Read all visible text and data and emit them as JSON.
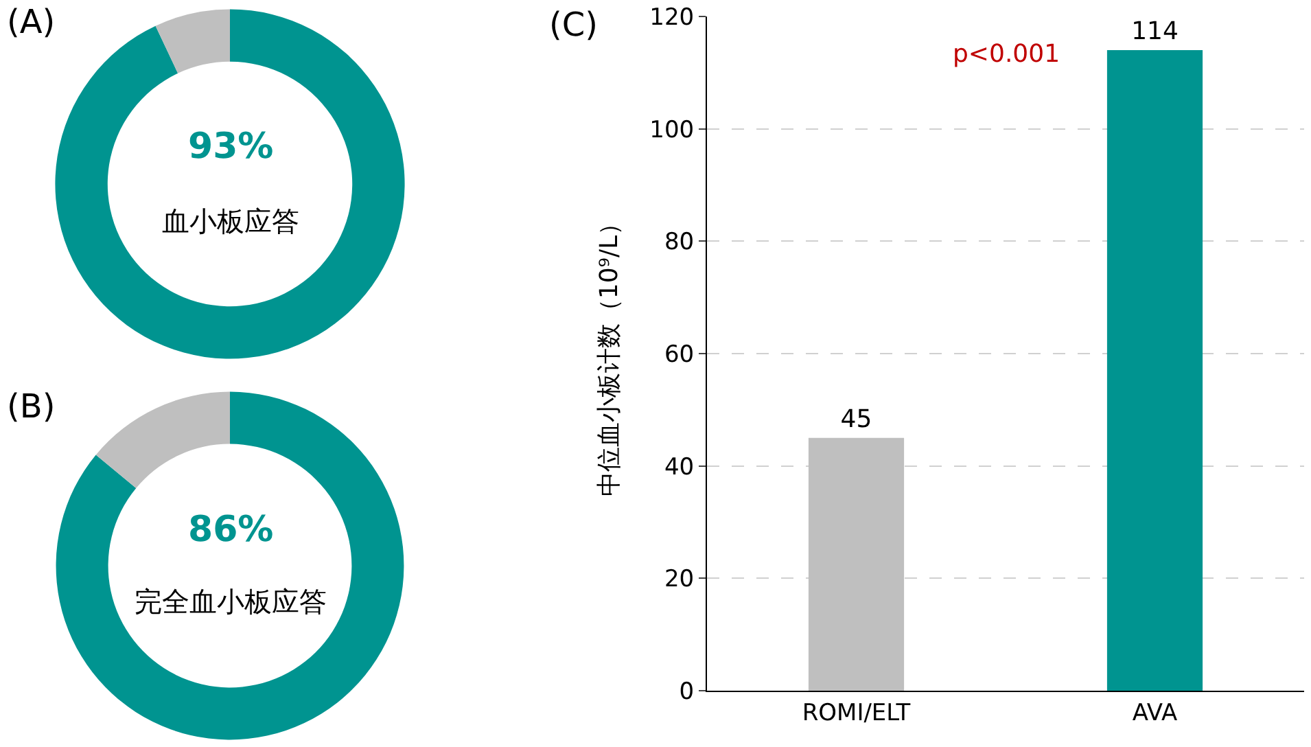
{
  "chart_data": [
    {
      "type": "donut",
      "title": "(A)",
      "categories": [
        "血小板应答",
        null
      ],
      "values": [
        93,
        7
      ],
      "colors": [
        "#009490",
        "#bfbfbf"
      ],
      "value_labels": [
        "93%",
        null
      ]
    },
    {
      "type": "donut",
      "title": "(B)",
      "categories": [
        "完全血小板应答",
        null
      ],
      "values": [
        86,
        14
      ],
      "colors": [
        "#009490",
        "#bfbfbf"
      ],
      "value_labels": [
        "86%",
        null
      ]
    },
    {
      "type": "bar",
      "title": "(C)",
      "categories": [
        "ROMI/ELT",
        "AVA"
      ],
      "values": [
        45,
        114
      ],
      "colors": [
        "#bfbfbf",
        "#009490"
      ],
      "ylim": [
        0,
        120
      ],
      "yticks": [
        0,
        20,
        40,
        60,
        80,
        100,
        120
      ],
      "grid": "y",
      "ylabel": "中位血小板计数（10⁹/L）",
      "data_labels": true,
      "annotations": [
        "p<0.001"
      ]
    }
  ]
}
